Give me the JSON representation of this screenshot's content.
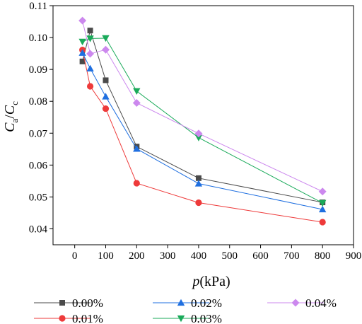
{
  "chart_data": {
    "type": "line",
    "xlabel_italic": "p",
    "xlabel_rest": "(kPa)",
    "ylabel_italic_main": "C",
    "ylabel_sub_a": "a",
    "ylabel_slash": "/",
    "ylabel_sub_c": "c",
    "xlim": [
      -70,
      900
    ],
    "ylim": [
      0.035,
      0.11
    ],
    "xticks": [
      0,
      100,
      200,
      300,
      400,
      500,
      600,
      700,
      800,
      900
    ],
    "xtick_labels": [
      "0",
      "100",
      "200",
      "300",
      "400",
      "500",
      "600",
      "700",
      "800",
      "900"
    ],
    "yticks": [
      0.04,
      0.05,
      0.06,
      0.07,
      0.08,
      0.09,
      0.1,
      0.11
    ],
    "ytick_labels": [
      "0.04",
      "0.05",
      "0.06",
      "0.07",
      "0.08",
      "0.09",
      "0.10",
      "0.11"
    ],
    "grid": false,
    "legend_position": "bottom",
    "series": [
      {
        "name": "0.00%",
        "color": "#4a4a4a",
        "marker": "square",
        "x": [
          25,
          50,
          100,
          200,
          400,
          800
        ],
        "y": [
          0.0925,
          0.1022,
          0.0866,
          0.0658,
          0.0559,
          0.0483
        ]
      },
      {
        "name": "0.01%",
        "color": "#ee3a3a",
        "marker": "circle",
        "x": [
          25,
          50,
          100,
          200,
          400,
          800
        ],
        "y": [
          0.0961,
          0.0847,
          0.0777,
          0.0543,
          0.0482,
          0.0421
        ]
      },
      {
        "name": "0.02%",
        "color": "#1f6fe0",
        "marker": "triangle-up",
        "x": [
          25,
          50,
          100,
          200,
          400,
          800
        ],
        "y": [
          0.0952,
          0.0903,
          0.0815,
          0.0651,
          0.0542,
          0.0461
        ]
      },
      {
        "name": "0.03%",
        "color": "#1aaa5a",
        "marker": "triangle-down",
        "x": [
          25,
          50,
          100,
          200,
          400,
          800
        ],
        "y": [
          0.0987,
          0.0997,
          0.0998,
          0.0832,
          0.0686,
          0.0481
        ]
      },
      {
        "name": "0.04%",
        "color": "#cc88ee",
        "marker": "diamond",
        "x": [
          25,
          50,
          100,
          200,
          400,
          800
        ],
        "y": [
          0.1053,
          0.0949,
          0.0962,
          0.0795,
          0.0699,
          0.0517
        ]
      }
    ]
  }
}
